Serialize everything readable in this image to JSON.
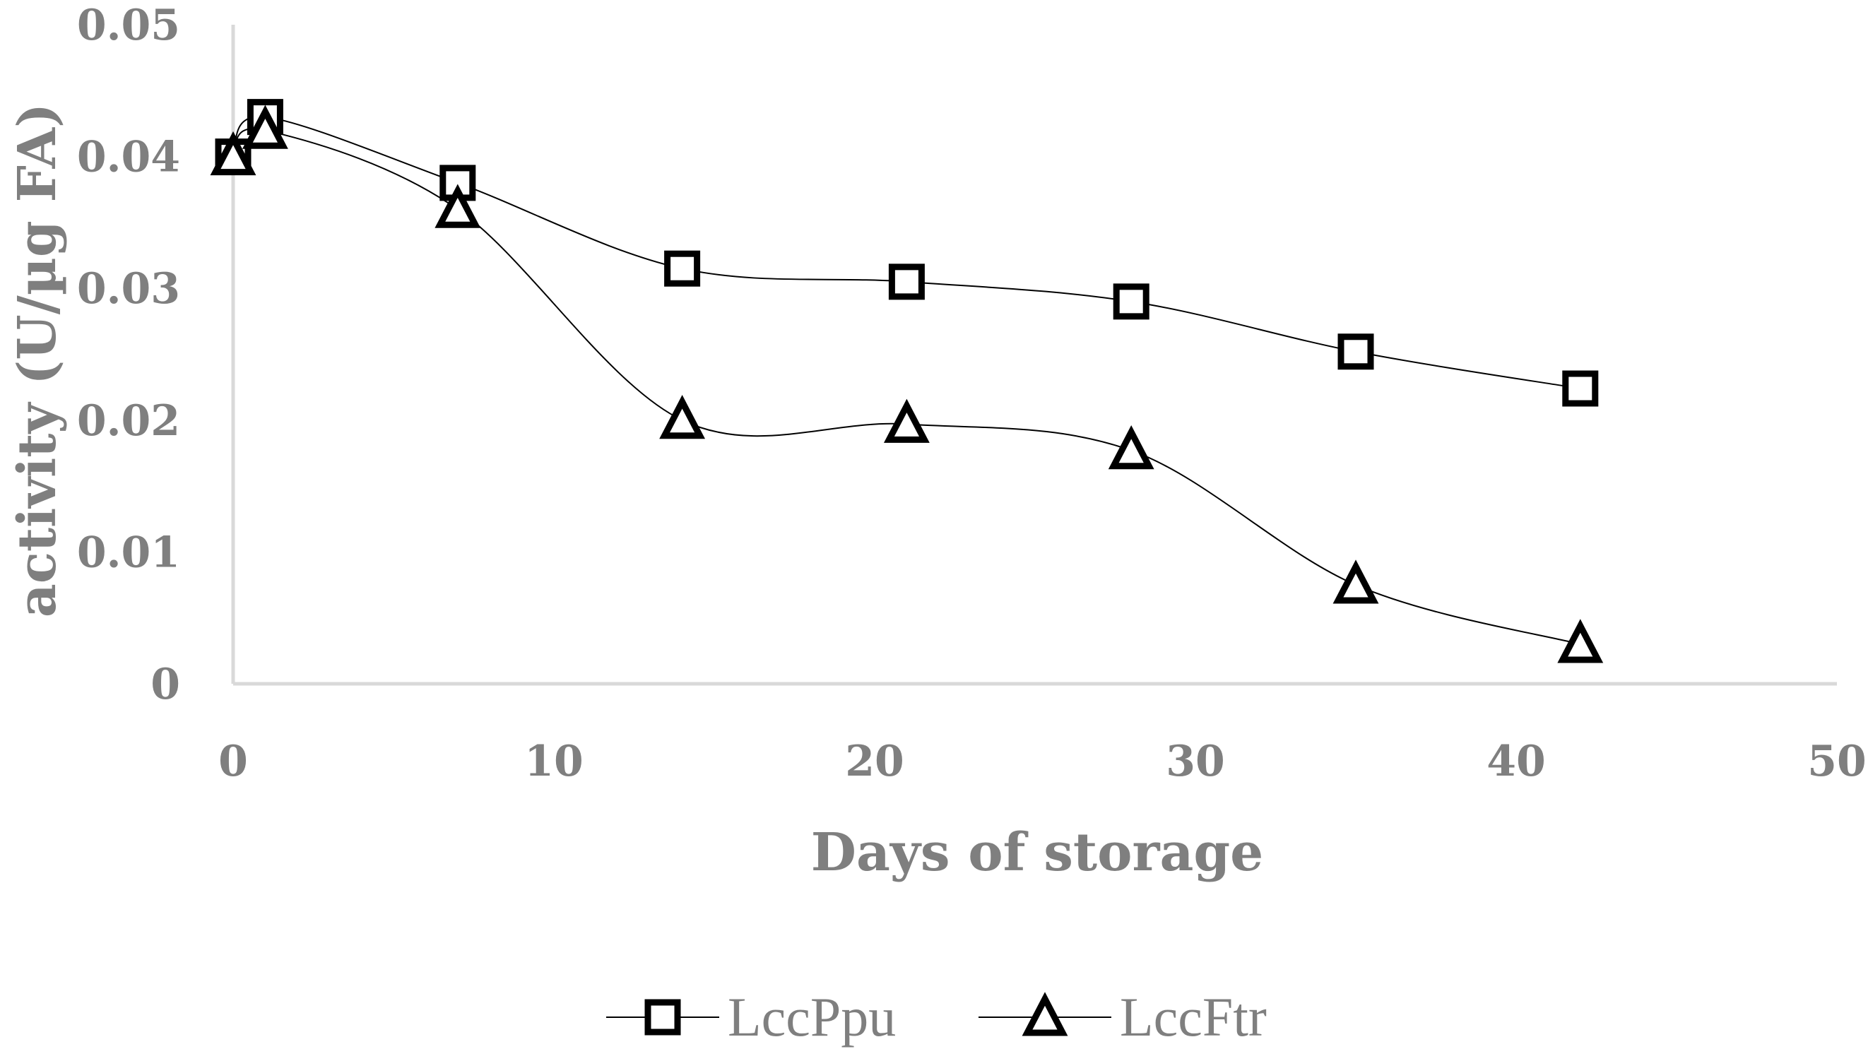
{
  "chart_data": {
    "type": "line",
    "title": "",
    "xlabel": "Days of storage",
    "ylabel": "activity (U/µg FA)",
    "xlim": [
      0,
      50
    ],
    "ylim": [
      0,
      0.05
    ],
    "x_ticks": [
      "0",
      "10",
      "20",
      "30",
      "40",
      "50"
    ],
    "y_ticks": [
      "0",
      "0.01",
      "0.02",
      "0.03",
      "0.04",
      "0.05"
    ],
    "grid": false,
    "legend_position": "bottom",
    "smoothed": true,
    "series": [
      {
        "name": "LccPpu",
        "marker": "square",
        "color": "#000000",
        "x": [
          0,
          1,
          7,
          14,
          21,
          28,
          35,
          42
        ],
        "y": [
          0.04,
          0.043,
          0.038,
          0.0315,
          0.0305,
          0.029,
          0.0252,
          0.0224
        ]
      },
      {
        "name": "LccFtr",
        "marker": "triangle",
        "color": "#000000",
        "x": [
          0,
          1,
          7,
          14,
          21,
          28,
          35,
          42
        ],
        "y": [
          0.04,
          0.042,
          0.036,
          0.02,
          0.0197,
          0.0177,
          0.0075,
          0.003
        ]
      }
    ]
  },
  "colors": {
    "axis_line": "#d9d9d9",
    "text": "#7f7f7f",
    "series_line": "#000000"
  }
}
